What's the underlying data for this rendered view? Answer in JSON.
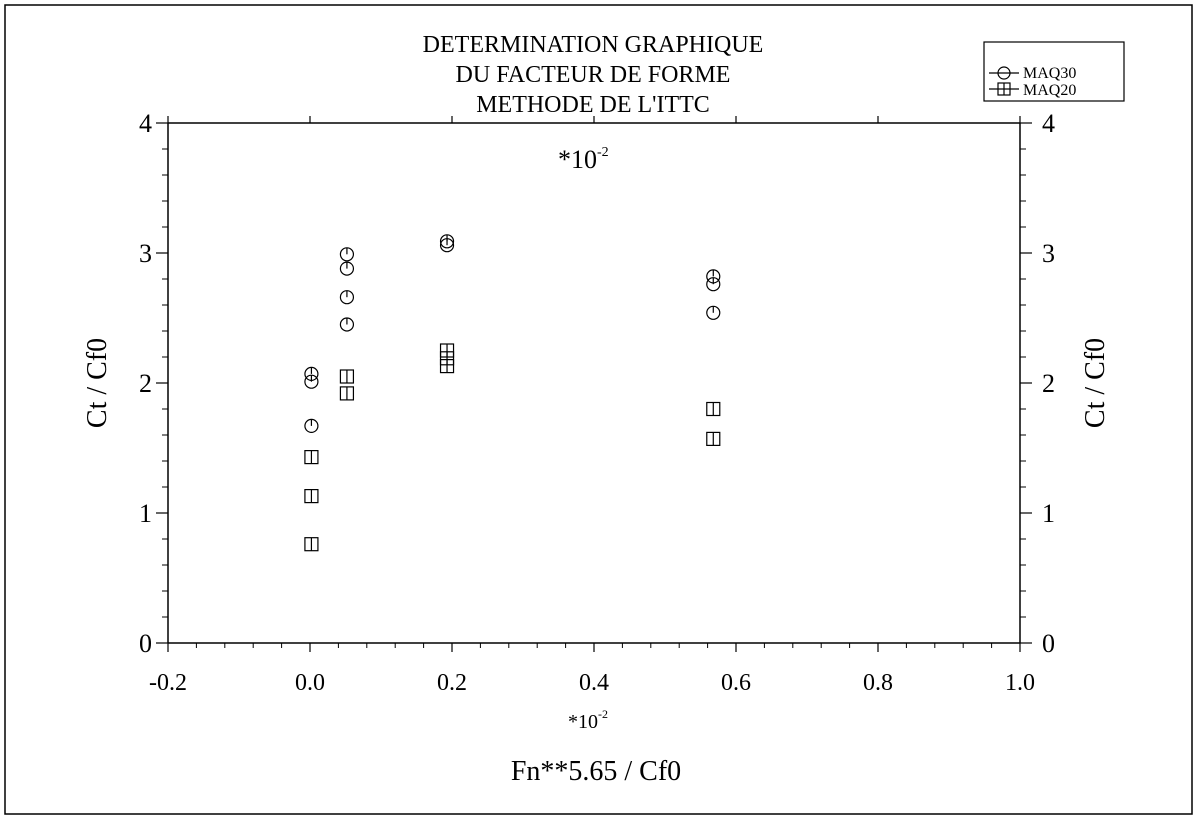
{
  "chart_data": {
    "type": "scatter",
    "title": [
      "DETERMINATION GRAPHIQUE",
      "DU FACTEUR DE FORME",
      "METHODE DE L'ITTC"
    ],
    "xlabel": "Fn**5.65 / Cf0",
    "ylabel": "Ct / Cf0",
    "ylabel_right": "Ct / Cf0",
    "x_multiplier": "*10",
    "y_multiplier": "*10",
    "multiplier_exponent": "-2",
    "xlim": [
      -0.2,
      1.0
    ],
    "ylim": [
      0,
      4
    ],
    "x_ticks": [
      -0.2,
      0.0,
      0.2,
      0.4,
      0.6,
      0.8,
      1.0
    ],
    "x_tick_labels": [
      "-0.2",
      "0.0",
      "0.2",
      "0.4",
      "0.6",
      "0.8",
      "1.0"
    ],
    "y_ticks": [
      0,
      1,
      2,
      3,
      4
    ],
    "y_tick_labels": [
      "0",
      "1",
      "2",
      "3",
      "4"
    ],
    "grid": false,
    "legend_position": "top-right",
    "series": [
      {
        "name": "MAQ30",
        "marker": "circle",
        "points": [
          [
            0.002,
            2.07
          ],
          [
            0.002,
            2.01
          ],
          [
            0.002,
            1.67
          ],
          [
            0.052,
            2.99
          ],
          [
            0.052,
            2.88
          ],
          [
            0.052,
            2.66
          ],
          [
            0.052,
            2.45
          ],
          [
            0.193,
            3.09
          ],
          [
            0.193,
            3.06
          ],
          [
            0.568,
            2.82
          ],
          [
            0.568,
            2.76
          ],
          [
            0.568,
            2.54
          ]
        ]
      },
      {
        "name": "MAQ20",
        "marker": "square",
        "points": [
          [
            0.002,
            1.43
          ],
          [
            0.002,
            1.13
          ],
          [
            0.002,
            0.76
          ],
          [
            0.052,
            2.05
          ],
          [
            0.052,
            1.92
          ],
          [
            0.193,
            2.25
          ],
          [
            0.193,
            2.19
          ],
          [
            0.193,
            2.13
          ],
          [
            0.568,
            1.8
          ],
          [
            0.568,
            1.57
          ]
        ]
      }
    ]
  }
}
